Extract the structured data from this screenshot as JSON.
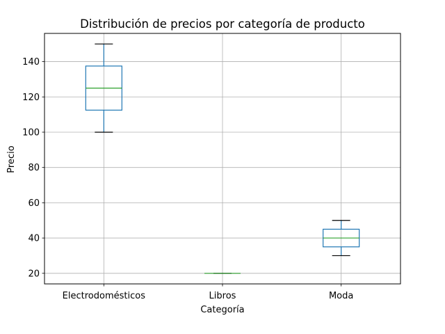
{
  "chart_data": {
    "type": "box",
    "title": "Distribución de precios por categoría de producto",
    "xlabel": "Categoría",
    "ylabel": "Precio",
    "categories": [
      "Electrodomésticos",
      "Libros",
      "Moda"
    ],
    "boxes": [
      {
        "category": "Electrodomésticos",
        "whislo": 100,
        "q1": 112.5,
        "med": 125,
        "q3": 137.5,
        "whishi": 150
      },
      {
        "category": "Libros",
        "whislo": 20,
        "q1": 20,
        "med": 20,
        "q3": 20,
        "whishi": 20
      },
      {
        "category": "Moda",
        "whislo": 30,
        "q1": 35,
        "med": 40,
        "q3": 45,
        "whishi": 50
      }
    ],
    "yticks": [
      20,
      40,
      60,
      80,
      100,
      120,
      140
    ],
    "ylim": [
      14.0,
      156.0
    ],
    "grid": true,
    "colors": {
      "box": "#1f77b4",
      "median": "#2ca02c",
      "caps": "#000000",
      "grid": "#b0b0b0",
      "axes": "#000000"
    }
  }
}
